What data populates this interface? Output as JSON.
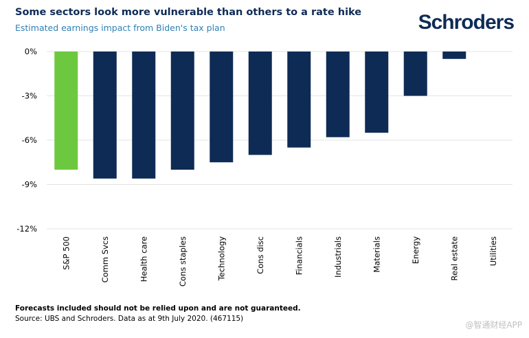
{
  "header": {
    "logo": "Schroders",
    "colors": {
      "sp500": "#6cc93f",
      "sector": "#0e2b55",
      "text": "#0e2b55",
      "subtitle": "#2f7fb5"
    }
  },
  "chart_data": {
    "type": "bar",
    "title": "Some sectors look more vulnerable than others to a rate hike",
    "subtitle": "Estimated earnings impact from Biden's tax plan",
    "xlabel": "",
    "ylabel": "",
    "ylim": [
      -12,
      0
    ],
    "yticks": [
      0,
      -3,
      -6,
      -9,
      -12
    ],
    "ytick_labels": [
      "0%",
      "-3%",
      "-6%",
      "-9%",
      "-12%"
    ],
    "grid": true,
    "categories": [
      "S&P 500",
      "Comm Svcs",
      "Health care",
      "Cons staples",
      "Technology",
      "Cons disc",
      "Financials",
      "Industrials",
      "Materials",
      "Energy",
      "Real estate",
      "Utilities"
    ],
    "values": [
      -8.0,
      -8.6,
      -8.6,
      -8.0,
      -7.5,
      -7.0,
      -6.5,
      -5.8,
      -5.5,
      -3.0,
      -0.5,
      0.0
    ]
  },
  "footer": {
    "note": "Forecasts included should not be relied upon and are not guaranteed.",
    "source": "Source: UBS and Schroders. Data as at 9th July 2020. (467115)",
    "watermark": "@智通财经APP"
  }
}
